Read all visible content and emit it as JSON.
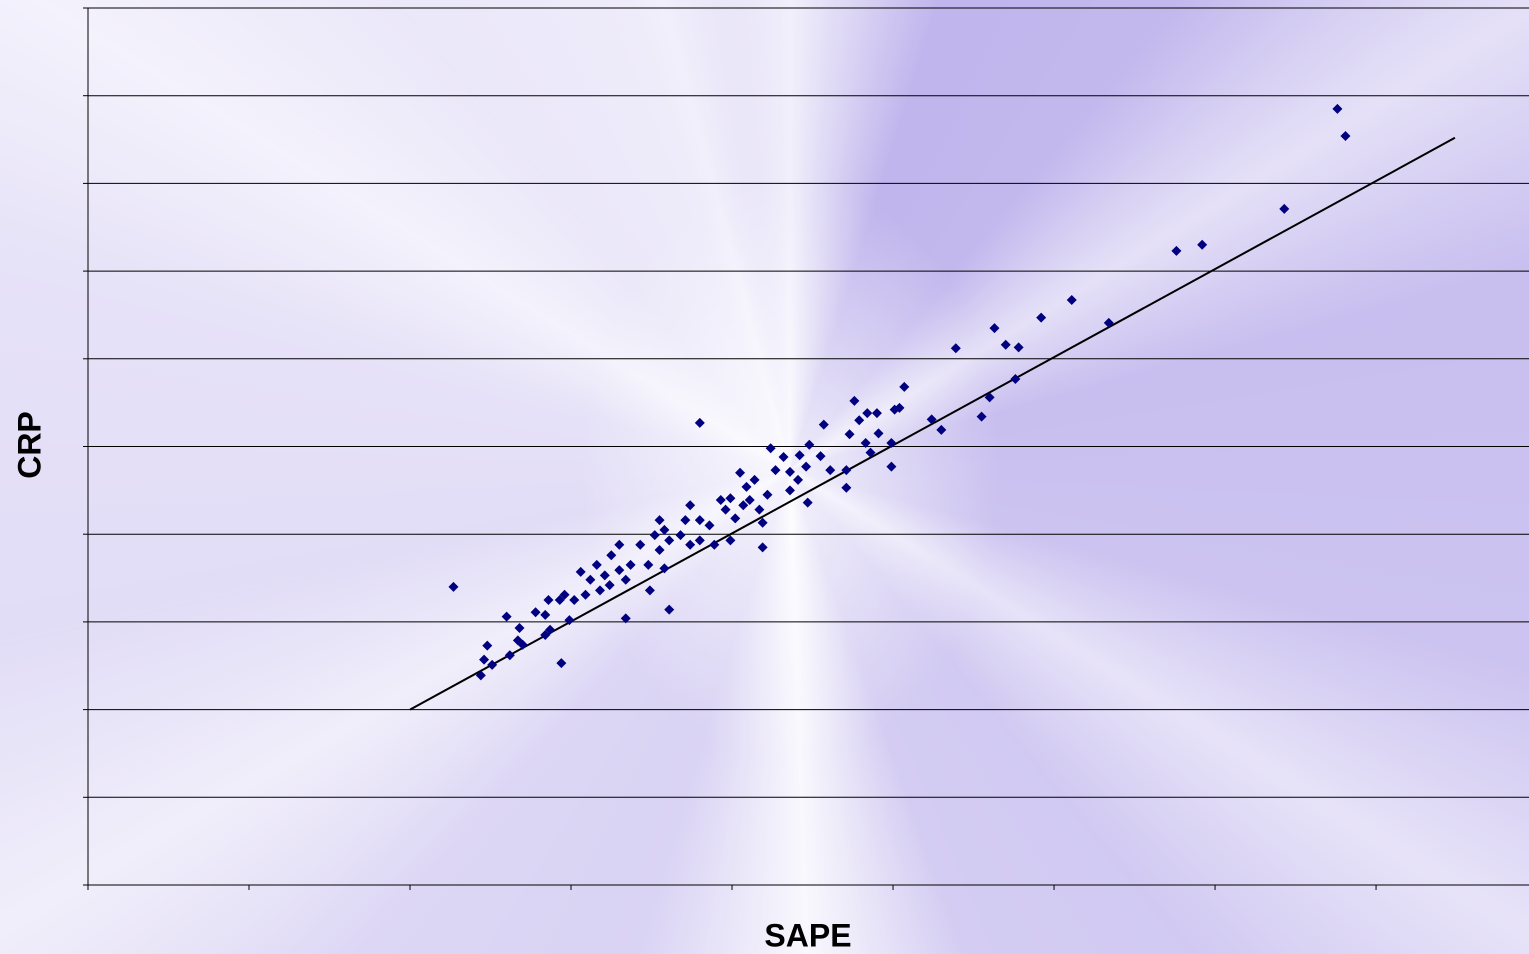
{
  "chart_data": {
    "type": "scatter",
    "x_label": "SAPE",
    "y_label": "CRP",
    "color": "#000080",
    "grid": true,
    "xlim": [
      0,
      8.95
    ],
    "xticks": [
      0,
      1,
      2,
      3,
      4,
      5,
      6,
      7,
      8
    ],
    "ylim": [
      0,
      10
    ],
    "yticks": [
      0,
      1,
      2,
      3,
      4,
      5,
      6,
      7,
      8,
      9,
      10
    ],
    "x": [
      7.76,
      7.81,
      7.43,
      6.76,
      6.92,
      6.11,
      6.34,
      5.92,
      5.63,
      5.7,
      5.78,
      5.39,
      5.76,
      5.6,
      5.55,
      5.3,
      5.24,
      5.07,
      5.04,
      5.01,
      4.99,
      4.99,
      4.9,
      4.84,
      4.76,
      4.91,
      4.86,
      4.83,
      4.73,
      4.71,
      4.71,
      4.57,
      4.55,
      4.48,
      4.47,
      4.46,
      4.41,
      4.36,
      4.27,
      4.24,
      4.32,
      4.19,
      4.22,
      4.17,
      4.19,
      4.05,
      4.09,
      4.07,
      3.99,
      3.96,
      4.02,
      3.99,
      3.89,
      3.8,
      3.8,
      3.74,
      3.71,
      3.68,
      3.61,
      3.58,
      3.55,
      3.52,
      3.61,
      3.58,
      3.48,
      3.43,
      3.49,
      3.37,
      3.34,
      3.3,
      3.25,
      3.21,
      3.18,
      3.16,
      3.12,
      3.09,
      3.06,
      3.02,
      3.34,
      2.96,
      2.93,
      2.86,
      2.84,
      2.87,
      2.84,
      2.78,
      2.94,
      2.27,
      2.6,
      2.68,
      2.67,
      2.62,
      2.48,
      2.46,
      2.51,
      2.44,
      2.7,
      2.99,
      3.8,
      3.86,
      4.11,
      4.14,
      4.36,
      4.61,
      4.79,
      3.3,
      3.24,
      3.55,
      3.74,
      3.93,
      4.42
    ],
    "y": [
      8.85,
      8.54,
      7.71,
      7.23,
      7.3,
      6.67,
      6.41,
      6.47,
      6.35,
      6.16,
      6.13,
      6.12,
      5.77,
      5.56,
      5.34,
      5.19,
      5.31,
      5.68,
      5.44,
      5.42,
      5.04,
      4.77,
      5.38,
      5.38,
      5.52,
      5.15,
      4.93,
      5.04,
      5.14,
      4.73,
      4.53,
      5.25,
      4.89,
      5.02,
      4.36,
      4.77,
      4.62,
      4.71,
      4.73,
      4.98,
      4.88,
      4.13,
      4.45,
      4.28,
      3.85,
      4.7,
      4.54,
      4.33,
      4.41,
      4.28,
      4.18,
      3.93,
      3.88,
      4.16,
      5.27,
      4.33,
      4.16,
      3.99,
      3.93,
      4.05,
      3.82,
      3.99,
      3.14,
      3.61,
      3.65,
      3.88,
      3.36,
      3.65,
      3.48,
      3.59,
      3.76,
      3.53,
      3.36,
      3.65,
      3.48,
      3.31,
      3.57,
      3.25,
      3.04,
      3.31,
      3.25,
      3.25,
      3.08,
      2.91,
      2.85,
      3.11,
      2.53,
      3.4,
      3.06,
      2.93,
      2.79,
      2.62,
      2.73,
      2.57,
      2.51,
      2.39,
      2.74,
      3.02,
      3.93,
      4.1,
      4.39,
      4.62,
      4.5,
      4.73,
      5.3,
      3.88,
      3.42,
      4.16,
      3.88,
      4.39,
      4.9
    ],
    "trendline": {
      "color": "#000000",
      "x": [
        2.0,
        8.49
      ],
      "y": [
        2.0,
        8.52
      ]
    }
  }
}
